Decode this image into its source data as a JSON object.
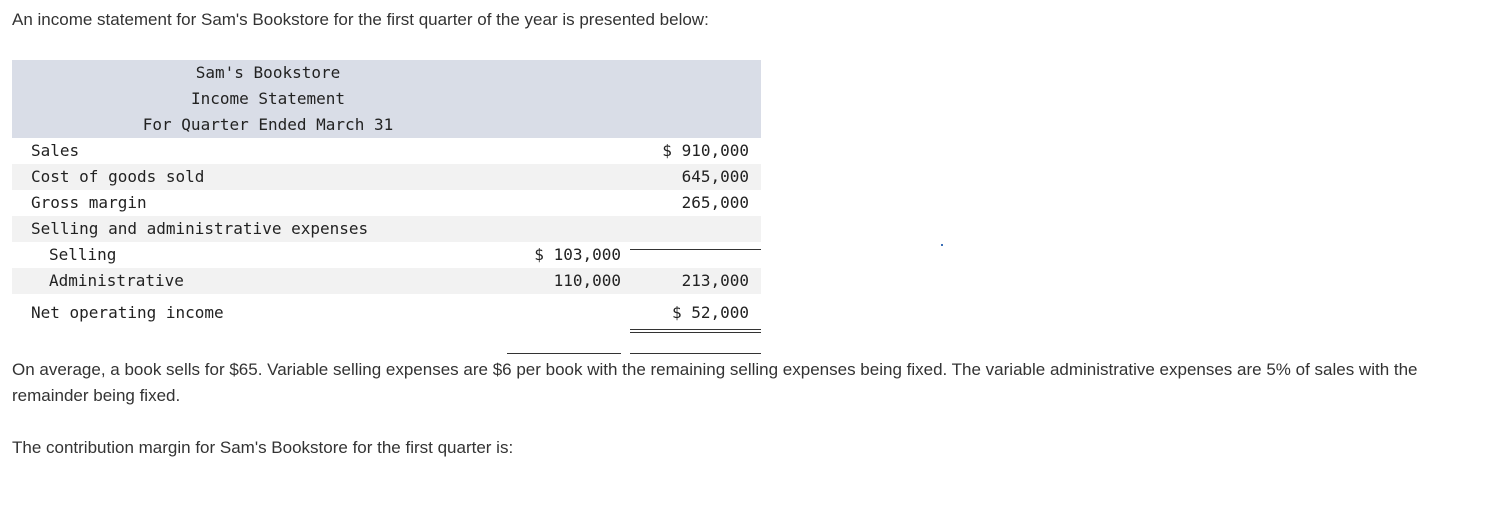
{
  "intro": "An income statement for Sam's Bookstore for the first quarter of the year is presented below:",
  "statement": {
    "company": "Sam's Bookstore",
    "title": "Income Statement",
    "period": "For Quarter Ended March 31",
    "rows": {
      "sales": {
        "label": "Sales",
        "col2": "$ 910,000"
      },
      "cogs": {
        "label": "Cost of goods sold",
        "col2": "645,000"
      },
      "gross": {
        "label": "Gross margin",
        "col2": "265,000"
      },
      "sga": {
        "label": "Selling and administrative expenses"
      },
      "selling": {
        "label": "Selling",
        "col1": "$ 103,000"
      },
      "admin": {
        "label": "Administrative",
        "col1": "110,000",
        "col2": "213,000"
      },
      "net": {
        "label": "Net operating income",
        "col2": "$ 52,000"
      }
    }
  },
  "paragraph1": "On average, a book sells for $65. Variable selling expenses are $6 per book with the remaining selling expenses being fixed. The variable administrative expenses are 5% of sales with the remainder being fixed.",
  "paragraph2": "The contribution margin for Sam's Bookstore for the first quarter is:"
}
